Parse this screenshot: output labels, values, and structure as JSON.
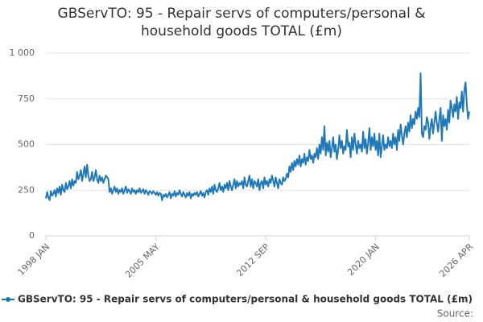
{
  "chart_data": {
    "type": "line",
    "title": "GBServTO: 95 - Repair servs of computers/personal & household goods TOTAL (£m)",
    "source": "Source:",
    "categories": [
      "1998 JAN",
      null,
      null,
      null,
      null,
      null,
      null,
      null,
      null,
      null,
      null,
      null,
      null,
      null,
      null,
      null,
      null,
      null,
      null,
      null,
      null,
      null,
      null,
      null,
      null,
      null,
      null,
      null,
      null,
      null,
      null,
      null,
      null,
      null,
      null,
      null,
      null,
      null,
      null,
      null,
      null,
      null,
      null,
      null,
      null,
      null,
      null,
      null,
      null,
      null,
      null,
      null,
      null,
      null,
      null,
      null,
      null,
      null,
      null,
      null,
      null,
      null,
      null,
      null,
      null,
      null,
      null,
      null,
      null,
      null,
      null,
      null,
      null,
      null,
      null,
      null,
      null,
      null,
      null,
      null,
      null,
      null,
      null,
      null,
      null,
      null,
      null,
      null,
      "2005 MAY",
      null,
      null,
      null,
      null,
      null,
      null,
      null,
      null,
      null,
      null,
      null,
      null,
      null,
      null,
      null,
      null,
      null,
      null,
      null,
      null,
      null,
      null,
      null,
      null,
      null,
      null,
      null,
      null,
      null,
      null,
      null,
      null,
      null,
      null,
      null,
      null,
      null,
      null,
      null,
      null,
      null,
      null,
      null,
      null,
      null,
      null,
      null,
      null,
      null,
      null,
      null,
      null,
      null,
      null,
      null,
      null,
      null,
      null,
      null,
      null,
      null,
      null,
      null,
      null,
      null,
      null,
      null,
      null,
      null,
      null,
      null,
      null,
      null,
      null,
      null,
      null,
      null,
      null,
      null,
      null,
      null,
      null,
      null,
      null,
      null,
      null,
      null,
      "2012 SEP",
      null,
      null,
      null,
      null,
      null,
      null,
      null,
      null,
      null,
      null,
      null,
      null,
      null,
      null,
      null,
      null,
      null,
      null,
      null,
      null,
      null,
      null,
      null,
      null,
      null,
      null,
      null,
      null,
      null,
      null,
      null,
      null,
      null,
      null,
      null,
      null,
      null,
      null,
      null,
      null,
      null,
      null,
      null,
      null,
      null,
      null,
      null,
      null,
      null,
      null,
      null,
      null,
      null,
      null,
      null,
      null,
      null,
      null,
      null,
      null,
      null,
      null,
      null,
      null,
      null,
      null,
      null,
      null,
      null,
      null,
      null,
      null,
      null,
      null,
      null,
      null,
      null,
      null,
      null,
      null,
      null,
      null,
      null,
      null,
      null,
      null,
      null,
      "2020 JAN",
      null,
      null,
      null,
      null,
      null,
      null,
      null,
      null,
      null,
      null,
      null,
      null,
      null,
      null,
      null,
      null,
      null,
      null,
      null,
      null,
      null,
      null,
      null,
      null,
      null,
      null,
      null,
      null,
      null,
      null,
      null,
      null,
      null,
      null,
      null,
      null,
      null,
      null,
      null,
      null,
      null,
      null,
      null,
      null,
      null,
      null,
      null,
      null,
      null,
      null,
      null,
      null,
      null,
      null,
      null,
      null,
      null,
      null,
      null,
      null,
      null,
      null,
      null,
      null,
      null,
      null,
      null,
      null,
      null,
      null,
      null,
      null,
      null,
      null,
      "2026 APR"
    ],
    "series": [
      {
        "name": "GBServTO: 95 - Repair servs of computers/personal & household goods TOTAL (£m)",
        "color": "#1f78b9",
        "values": [
          205,
          240,
          210,
          195,
          245,
          220,
          230,
          250,
          215,
          260,
          235,
          270,
          225,
          280,
          250,
          240,
          290,
          255,
          270,
          300,
          260,
          310,
          275,
          300,
          290,
          350,
          310,
          330,
          360,
          300,
          340,
          380,
          320,
          390,
          330,
          300,
          310,
          350,
          300,
          320,
          360,
          310,
          290,
          330,
          300,
          320,
          290,
          310,
          330,
          320,
          310,
          240,
          260,
          230,
          250,
          270,
          240,
          260,
          230,
          250,
          240,
          260,
          230,
          250,
          270,
          235,
          255,
          245,
          230,
          260,
          240,
          250,
          230,
          250,
          240,
          260,
          235,
          245,
          255,
          230,
          250,
          240,
          225,
          245,
          240,
          230,
          245,
          235,
          225,
          240,
          220,
          235,
          230,
          195,
          225,
          215,
          230,
          210,
          225,
          240,
          205,
          230,
          220,
          245,
          215,
          235,
          225,
          250,
          230,
          215,
          240,
          225,
          210,
          235,
          220,
          240,
          205,
          230,
          220,
          235,
          225,
          240,
          215,
          230,
          245,
          220,
          235,
          210,
          240,
          250,
          225,
          260,
          240,
          270,
          230,
          280,
          250,
          240,
          260,
          290,
          250,
          270,
          240,
          280,
          260,
          290,
          250,
          300,
          270,
          250,
          280,
          310,
          260,
          300,
          270,
          290,
          280,
          300,
          260,
          320,
          280,
          270,
          300,
          330,
          270,
          310,
          260,
          300,
          290,
          270,
          310,
          250,
          290,
          300,
          260,
          320,
          280,
          300,
          270,
          310,
          290,
          330,
          300,
          270,
          320,
          290,
          260,
          310,
          290,
          280,
          320,
          300,
          310,
          340,
          320,
          380,
          350,
          400,
          360,
          410,
          380,
          420,
          390,
          440,
          380,
          420,
          400,
          450,
          390,
          430,
          410,
          470,
          420,
          440,
          400,
          450,
          430,
          480,
          420,
          500,
          450,
          540,
          470,
          600,
          440,
          510,
          460,
          520,
          430,
          480,
          540,
          460,
          500,
          420,
          470,
          550,
          480,
          520,
          450,
          490,
          470,
          580,
          490,
          510,
          430,
          540,
          470,
          560,
          500,
          450,
          520,
          480,
          500,
          460,
          570,
          480,
          530,
          450,
          510,
          590,
          470,
          540,
          490,
          560,
          470,
          520,
          440,
          560,
          430,
          490,
          550,
          470,
          500,
          480,
          540,
          490,
          520,
          480,
          560,
          500,
          540,
          470,
          580,
          520,
          610,
          550,
          500,
          560,
          600,
          540,
          620,
          570,
          660,
          590,
          640,
          610,
          680,
          640,
          700,
          650,
          890,
          560,
          540,
          600,
          580,
          650,
          620,
          530,
          600,
          640,
          560,
          620,
          680,
          620,
          570,
          640,
          700,
          520,
          660,
          600,
          640,
          580,
          690,
          620,
          740,
          700,
          650,
          720,
          680,
          760,
          640,
          730,
          700,
          790,
          680,
          800,
          840,
          720,
          640,
          680
        ]
      }
    ],
    "ylim": [
      0,
      1000
    ],
    "yticks": [
      0,
      250,
      500,
      750,
      {
        "value": 1000,
        "label": "1 000"
      }
    ],
    "grid": true
  }
}
